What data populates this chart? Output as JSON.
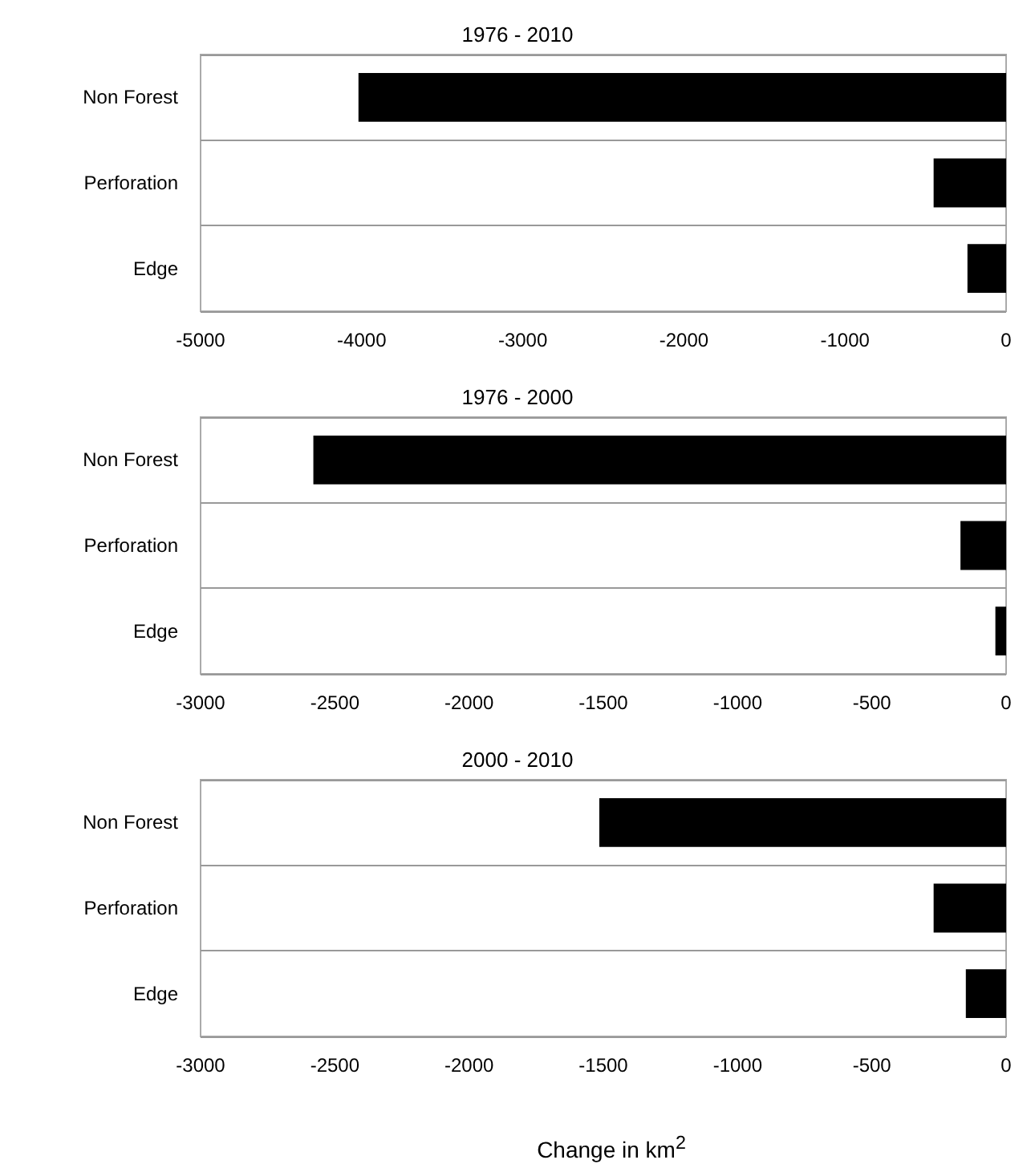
{
  "chart_data": [
    {
      "type": "bar",
      "title": "1976 - 2010",
      "orientation": "horizontal",
      "categories": [
        "Non Forest",
        "Perforation",
        "Edge"
      ],
      "values": [
        -4020,
        -450,
        -240
      ],
      "color": "#000000",
      "xlim": [
        -5000,
        0
      ],
      "xticks": [
        -5000,
        -4000,
        -3000,
        -2000,
        -1000,
        0
      ],
      "grid": "y"
    },
    {
      "type": "bar",
      "title": "1976 - 2000",
      "orientation": "horizontal",
      "categories": [
        "Non Forest",
        "Perforation",
        "Edge"
      ],
      "values": [
        -2580,
        -170,
        -40
      ],
      "color": "#000000",
      "xlim": [
        -3000,
        0
      ],
      "xticks": [
        -3000,
        -2500,
        -2000,
        -1500,
        -1000,
        -500,
        0
      ],
      "grid": "y"
    },
    {
      "type": "bar",
      "title": "2000 - 2010",
      "orientation": "horizontal",
      "categories": [
        "Non Forest",
        "Perforation",
        "Edge"
      ],
      "values": [
        -1515,
        -270,
        -150
      ],
      "color": "#000000",
      "xlim": [
        -3000,
        0
      ],
      "xticks": [
        -3000,
        -2500,
        -2000,
        -1500,
        -1000,
        -500,
        0
      ],
      "grid": "y",
      "xlabel": "Change in km$^{2}$"
    }
  ]
}
